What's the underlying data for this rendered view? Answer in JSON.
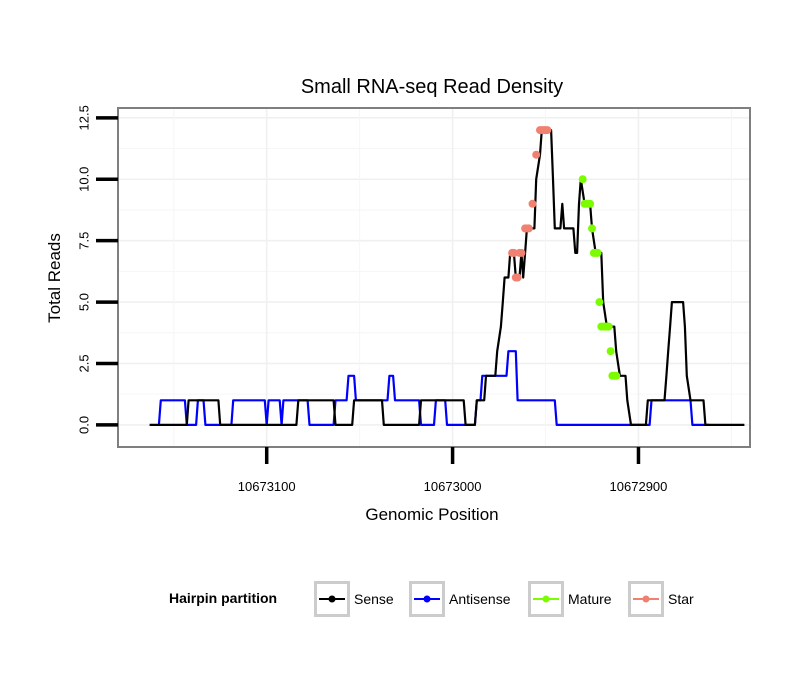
{
  "chart_data": {
    "type": "line",
    "title": "Small RNA-seq Read Density",
    "xlabel": "Genomic Position",
    "ylabel": "Total Reads",
    "x_reversed": true,
    "xlim": [
      10673180,
      10672840
    ],
    "ylim": [
      -0.9,
      12.9
    ],
    "grid": true,
    "x_ticks": [
      {
        "value": 10673100,
        "label": "10673100"
      },
      {
        "value": 10673000,
        "label": "10673000"
      },
      {
        "value": 10672900,
        "label": "10672900"
      }
    ],
    "y_ticks": [
      {
        "value": 0,
        "label": "0.0"
      },
      {
        "value": 2.5,
        "label": "2.5"
      },
      {
        "value": 5,
        "label": "5.0"
      },
      {
        "value": 7.5,
        "label": "7.5"
      },
      {
        "value": 10,
        "label": "10.0"
      },
      {
        "value": 12.5,
        "label": "12.5"
      }
    ],
    "legend": {
      "title": "Hairpin partition",
      "placement": "bottom",
      "entries": [
        {
          "name": "Sense",
          "color": "#000000"
        },
        {
          "name": "Antisense",
          "color": "#0000ff"
        },
        {
          "name": "Mature",
          "color": "#7cfc00"
        },
        {
          "name": "Star",
          "color": "#f08070"
        }
      ]
    },
    "series": [
      {
        "name": "Sense",
        "color": "#000000",
        "points": [
          [
            10673163,
            0
          ],
          [
            10673143,
            0
          ],
          [
            10673142,
            1
          ],
          [
            10673126,
            1
          ],
          [
            10673125,
            0
          ],
          [
            10673121,
            0
          ],
          [
            10673084,
            0
          ],
          [
            10673083,
            1
          ],
          [
            10673064,
            1
          ],
          [
            10673063,
            0
          ],
          [
            10673054,
            0
          ],
          [
            10673053,
            1
          ],
          [
            10673038,
            1
          ],
          [
            10673037,
            0
          ],
          [
            10673018,
            0
          ],
          [
            10673017,
            1
          ],
          [
            10672994,
            1
          ],
          [
            10672993,
            0
          ],
          [
            10672988,
            0
          ],
          [
            10672987,
            1
          ],
          [
            10672983,
            1
          ],
          [
            10672982,
            2
          ],
          [
            10672977,
            2
          ],
          [
            10672976,
            3
          ],
          [
            10672974,
            4
          ],
          [
            10672973,
            5
          ],
          [
            10672972,
            6
          ],
          [
            10672970,
            6
          ],
          [
            10672969,
            7
          ],
          [
            10672967,
            7
          ],
          [
            10672966,
            6
          ],
          [
            10672964,
            6
          ],
          [
            10672963,
            7
          ],
          [
            10672962,
            6
          ],
          [
            10672961,
            7
          ],
          [
            10672960,
            8
          ],
          [
            10672956,
            8
          ],
          [
            10672955,
            10
          ],
          [
            10672953,
            11
          ],
          [
            10672952,
            12
          ],
          [
            10672947,
            12
          ],
          [
            10672946,
            10
          ],
          [
            10672945,
            8
          ],
          [
            10672942,
            8
          ],
          [
            10672941,
            9
          ],
          [
            10672940,
            8
          ],
          [
            10672935,
            8
          ],
          [
            10672934,
            7
          ],
          [
            10672933,
            7
          ],
          [
            10672932,
            9
          ],
          [
            10672931,
            10
          ],
          [
            10672929,
            9
          ],
          [
            10672926,
            9
          ],
          [
            10672925,
            8
          ],
          [
            10672923,
            7
          ],
          [
            10672920,
            7
          ],
          [
            10672919,
            5
          ],
          [
            10672917,
            4
          ],
          [
            10672913,
            4
          ],
          [
            10672912,
            3
          ],
          [
            10672910,
            2
          ],
          [
            10672907,
            2
          ],
          [
            10672906,
            1
          ],
          [
            10672904,
            0
          ],
          [
            10672896,
            0
          ],
          [
            10672895,
            1
          ],
          [
            10672886,
            1
          ],
          [
            10672885,
            2
          ],
          [
            10672884,
            3
          ],
          [
            10672883,
            4
          ],
          [
            10672882,
            5
          ],
          [
            10672876,
            5
          ],
          [
            10672875,
            4
          ],
          [
            10672874,
            2
          ],
          [
            10672872,
            1
          ],
          [
            10672865,
            1
          ],
          [
            10672864,
            0
          ],
          [
            10672843,
            0
          ]
        ]
      },
      {
        "name": "Antisense",
        "color": "#0000ff",
        "points": [
          [
            10673158,
            0
          ],
          [
            10673157,
            1
          ],
          [
            10673144,
            1
          ],
          [
            10673143,
            0
          ],
          [
            10673138,
            0
          ],
          [
            10673137,
            1
          ],
          [
            10673134,
            1
          ],
          [
            10673133,
            0
          ],
          [
            10673119,
            0
          ],
          [
            10673118,
            1
          ],
          [
            10673101,
            1
          ],
          [
            10673100,
            0
          ],
          [
            10673099,
            1
          ],
          [
            10673093,
            1
          ],
          [
            10673092,
            0
          ],
          [
            10673091,
            1
          ],
          [
            10673078,
            1
          ],
          [
            10673077,
            0
          ],
          [
            10673064,
            0
          ],
          [
            10673063,
            1
          ],
          [
            10673057,
            1
          ],
          [
            10673056,
            2
          ],
          [
            10673053,
            2
          ],
          [
            10673052,
            1
          ],
          [
            10673035,
            1
          ],
          [
            10673034,
            2
          ],
          [
            10673032,
            2
          ],
          [
            10673031,
            1
          ],
          [
            10673018,
            1
          ],
          [
            10673017,
            0
          ],
          [
            10673010,
            0
          ],
          [
            10673009,
            1
          ],
          [
            10673004,
            1
          ],
          [
            10673003,
            0
          ],
          [
            10672988,
            0
          ],
          [
            10672987,
            1
          ],
          [
            10672985,
            1
          ],
          [
            10672984,
            2
          ],
          [
            10672971,
            2
          ],
          [
            10672970,
            3
          ],
          [
            10672966,
            3
          ],
          [
            10672965,
            1
          ],
          [
            10672945,
            1
          ],
          [
            10672944,
            0
          ],
          [
            10672894,
            0
          ],
          [
            10672893,
            1
          ],
          [
            10672872,
            1
          ],
          [
            10672871,
            0
          ],
          [
            10672862,
            0
          ]
        ]
      },
      {
        "name": "Mature",
        "color": "#7cfc00",
        "points": [
          [
            10672930,
            10
          ],
          [
            10672929,
            9
          ],
          [
            10672928,
            9
          ],
          [
            10672927,
            9
          ],
          [
            10672926,
            9
          ],
          [
            10672925,
            8
          ],
          [
            10672924,
            7
          ],
          [
            10672923,
            7
          ],
          [
            10672922,
            7
          ],
          [
            10672921,
            5
          ],
          [
            10672920,
            4
          ],
          [
            10672919,
            4
          ],
          [
            10672918,
            4
          ],
          [
            10672917,
            4
          ],
          [
            10672916,
            4
          ],
          [
            10672915,
            3
          ],
          [
            10672914,
            2
          ],
          [
            10672913,
            2
          ],
          [
            10672912,
            2
          ]
        ]
      },
      {
        "name": "Star",
        "color": "#f08070",
        "points": [
          [
            10672968,
            7
          ],
          [
            10672967,
            7
          ],
          [
            10672966,
            6
          ],
          [
            10672965,
            6
          ],
          [
            10672964,
            7
          ],
          [
            10672963,
            7
          ],
          [
            10672961,
            8
          ],
          [
            10672960,
            8
          ],
          [
            10672959,
            8
          ],
          [
            10672957,
            9
          ],
          [
            10672955,
            11
          ],
          [
            10672953,
            12
          ],
          [
            10672952,
            12
          ],
          [
            10672951,
            12
          ],
          [
            10672950,
            12
          ],
          [
            10672949,
            12
          ]
        ]
      }
    ]
  }
}
